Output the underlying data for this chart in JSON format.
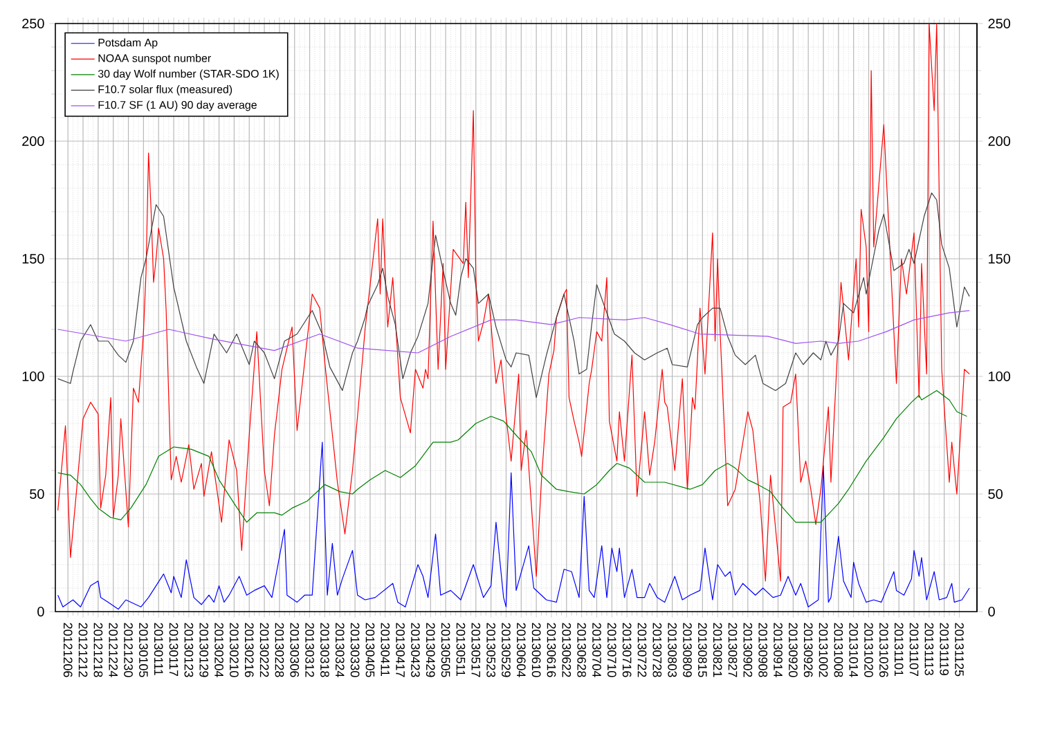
{
  "chart_data": {
    "type": "line",
    "grid": true,
    "legend": "top left",
    "xlim": [
      "2012-12-01",
      "2013-12-02"
    ],
    "xticks": [
      {
        "value": "2012-12-06",
        "label": "20121206"
      },
      {
        "value": "2012-12-12",
        "label": "20121212"
      },
      {
        "value": "2012-12-18",
        "label": "20121218"
      },
      {
        "value": "2012-12-24",
        "label": "20121224"
      },
      {
        "value": "2012-12-30",
        "label": "20121230"
      },
      {
        "value": "2013-01-05",
        "label": "20130105"
      },
      {
        "value": "2013-01-11",
        "label": "20130111"
      },
      {
        "value": "2013-01-17",
        "label": "20130117"
      },
      {
        "value": "2013-01-23",
        "label": "20130123"
      },
      {
        "value": "2013-01-29",
        "label": "20130129"
      },
      {
        "value": "2013-02-04",
        "label": "20130204"
      },
      {
        "value": "2013-02-10",
        "label": "20130210"
      },
      {
        "value": "2013-02-16",
        "label": "20130216"
      },
      {
        "value": "2013-02-22",
        "label": "20130222"
      },
      {
        "value": "2013-02-28",
        "label": "20130228"
      },
      {
        "value": "2013-03-06",
        "label": "20130306"
      },
      {
        "value": "2013-03-12",
        "label": "20130312"
      },
      {
        "value": "2013-03-18",
        "label": "20130318"
      },
      {
        "value": "2013-03-24",
        "label": "20130324"
      },
      {
        "value": "2013-03-30",
        "label": "20130330"
      },
      {
        "value": "2013-04-05",
        "label": "20130405"
      },
      {
        "value": "2013-04-11",
        "label": "20130411"
      },
      {
        "value": "2013-04-17",
        "label": "20130417"
      },
      {
        "value": "2013-04-23",
        "label": "20130423"
      },
      {
        "value": "2013-04-29",
        "label": "20130429"
      },
      {
        "value": "2013-05-05",
        "label": "20130505"
      },
      {
        "value": "2013-05-11",
        "label": "20130511"
      },
      {
        "value": "2013-05-17",
        "label": "20130517"
      },
      {
        "value": "2013-05-23",
        "label": "20130523"
      },
      {
        "value": "2013-05-29",
        "label": "20130529"
      },
      {
        "value": "2013-06-04",
        "label": "20130604"
      },
      {
        "value": "2013-06-10",
        "label": "20130610"
      },
      {
        "value": "2013-06-16",
        "label": "20130616"
      },
      {
        "value": "2013-06-22",
        "label": "20130622"
      },
      {
        "value": "2013-06-28",
        "label": "20130628"
      },
      {
        "value": "2013-07-04",
        "label": "20130704"
      },
      {
        "value": "2013-07-10",
        "label": "20130710"
      },
      {
        "value": "2013-07-16",
        "label": "20130716"
      },
      {
        "value": "2013-07-22",
        "label": "20130722"
      },
      {
        "value": "2013-07-28",
        "label": "20130728"
      },
      {
        "value": "2013-08-03",
        "label": "20130803"
      },
      {
        "value": "2013-08-09",
        "label": "20130809"
      },
      {
        "value": "2013-08-15",
        "label": "20130815"
      },
      {
        "value": "2013-08-21",
        "label": "20130821"
      },
      {
        "value": "2013-08-27",
        "label": "20130827"
      },
      {
        "value": "2013-09-02",
        "label": "20130902"
      },
      {
        "value": "2013-09-08",
        "label": "20130908"
      },
      {
        "value": "2013-09-14",
        "label": "20130914"
      },
      {
        "value": "2013-09-20",
        "label": "20130920"
      },
      {
        "value": "2013-09-26",
        "label": "20130926"
      },
      {
        "value": "2013-10-02",
        "label": "20131002"
      },
      {
        "value": "2013-10-08",
        "label": "20131008"
      },
      {
        "value": "2013-10-14",
        "label": "20131014"
      },
      {
        "value": "2013-10-20",
        "label": "20131020"
      },
      {
        "value": "2013-10-26",
        "label": "20131026"
      },
      {
        "value": "2013-11-01",
        "label": "20131101"
      },
      {
        "value": "2013-11-07",
        "label": "20131107"
      },
      {
        "value": "2013-11-13",
        "label": "20131113"
      },
      {
        "value": "2013-11-19",
        "label": "20131119"
      },
      {
        "value": "2013-11-25",
        "label": "20131125"
      }
    ],
    "ylim": [
      0,
      250
    ],
    "yticks": [
      0,
      50,
      100,
      150,
      200,
      250
    ],
    "y2lim": [
      0,
      250
    ],
    "y2ticks": [
      0,
      50,
      100,
      150,
      200,
      250
    ],
    "series": [
      {
        "name": "Potsdam Ap",
        "color": "#0000ff",
        "x": [
          "2012-12-02",
          "2012-12-04",
          "2012-12-08",
          "2012-12-11",
          "2012-12-15",
          "2012-12-18",
          "2012-12-19",
          "2012-12-22",
          "2012-12-26",
          "2012-12-29",
          "2013-01-04",
          "2013-01-07",
          "2013-01-13",
          "2013-01-16",
          "2013-01-17",
          "2013-01-20",
          "2013-01-22",
          "2013-01-25",
          "2013-01-28",
          "2013-01-31",
          "2013-02-02",
          "2013-02-04",
          "2013-02-06",
          "2013-02-08",
          "2013-02-12",
          "2013-02-15",
          "2013-02-18",
          "2013-02-22",
          "2013-02-25",
          "2013-03-02",
          "2013-03-03",
          "2013-03-07",
          "2013-03-10",
          "2013-03-13",
          "2013-03-17",
          "2013-03-19",
          "2013-03-21",
          "2013-03-23",
          "2013-03-25",
          "2013-03-29",
          "2013-03-31",
          "2013-04-03",
          "2013-04-07",
          "2013-04-14",
          "2013-04-16",
          "2013-04-19",
          "2013-04-24",
          "2013-04-26",
          "2013-04-28",
          "2013-05-01",
          "2013-05-03",
          "2013-05-07",
          "2013-05-11",
          "2013-05-16",
          "2013-05-18",
          "2013-05-20",
          "2013-05-23",
          "2013-05-25",
          "2013-05-28",
          "2013-05-29",
          "2013-05-31",
          "2013-06-02",
          "2013-06-07",
          "2013-06-09",
          "2013-06-14",
          "2013-06-18",
          "2013-06-21",
          "2013-06-24",
          "2013-06-27",
          "2013-06-29",
          "2013-07-01",
          "2013-07-03",
          "2013-07-06",
          "2013-07-08",
          "2013-07-10",
          "2013-07-12",
          "2013-07-13",
          "2013-07-15",
          "2013-07-18",
          "2013-07-20",
          "2013-07-23",
          "2013-07-25",
          "2013-07-28",
          "2013-07-31",
          "2013-08-04",
          "2013-08-07",
          "2013-08-10",
          "2013-08-14",
          "2013-08-16",
          "2013-08-19",
          "2013-08-21",
          "2013-08-24",
          "2013-08-26",
          "2013-08-28",
          "2013-08-31",
          "2013-09-05",
          "2013-09-08",
          "2013-09-12",
          "2013-09-15",
          "2013-09-18",
          "2013-09-21",
          "2013-09-23",
          "2013-09-26",
          "2013-09-30",
          "2013-10-02",
          "2013-10-04",
          "2013-10-05",
          "2013-10-08",
          "2013-10-10",
          "2013-10-13",
          "2013-10-14",
          "2013-10-16",
          "2013-10-19",
          "2013-10-22",
          "2013-10-25",
          "2013-10-30",
          "2013-10-31",
          "2013-11-03",
          "2013-11-06",
          "2013-11-07",
          "2013-11-09",
          "2013-11-10",
          "2013-11-12",
          "2013-11-15",
          "2013-11-17",
          "2013-11-20",
          "2013-11-22",
          "2013-11-23",
          "2013-11-26",
          "2013-11-29"
        ],
        "values": [
          7,
          2,
          5,
          2,
          11,
          13,
          6,
          4,
          1,
          5,
          2,
          6,
          16,
          8,
          15,
          6,
          22,
          6,
          3,
          7,
          4,
          11,
          4,
          7,
          15,
          7,
          9,
          11,
          6,
          35,
          7,
          4,
          7,
          7,
          72,
          7,
          29,
          7,
          14,
          26,
          7,
          5,
          6,
          12,
          4,
          2,
          20,
          15,
          6,
          33,
          7,
          9,
          5,
          20,
          13,
          6,
          11,
          38,
          6,
          2,
          59,
          9,
          28,
          10,
          5,
          4,
          18,
          17,
          6,
          49,
          9,
          6,
          28,
          6,
          27,
          17,
          27,
          6,
          18,
          6,
          6,
          12,
          6,
          4,
          15,
          5,
          7,
          9,
          27,
          5,
          20,
          15,
          17,
          7,
          12,
          7,
          10,
          6,
          7,
          15,
          7,
          12,
          2,
          5,
          62,
          4,
          6,
          32,
          13,
          6,
          21,
          12,
          4,
          5,
          4,
          17,
          9,
          7,
          14,
          26,
          15,
          23,
          5,
          17,
          5,
          6,
          12,
          4,
          5,
          10
        ]
      },
      {
        "name": "NOAA sunspot number",
        "color": "#ff0000",
        "x": [
          "2012-12-02",
          "2012-12-05",
          "2012-12-07",
          "2012-12-12",
          "2012-12-15",
          "2012-12-18",
          "2012-12-19",
          "2012-12-21",
          "2012-12-23",
          "2012-12-24",
          "2012-12-26",
          "2012-12-27",
          "2012-12-30",
          "2012-12-31",
          "2013-01-01",
          "2013-01-03",
          "2013-01-05",
          "2013-01-06",
          "2013-01-07",
          "2013-01-08",
          "2013-01-09",
          "2013-01-10",
          "2013-01-11",
          "2013-01-13",
          "2013-01-14",
          "2013-01-16",
          "2013-01-18",
          "2013-01-20",
          "2013-01-23",
          "2013-01-25",
          "2013-01-28",
          "2013-01-29",
          "2013-02-01",
          "2013-02-05",
          "2013-02-08",
          "2013-02-11",
          "2013-02-13",
          "2013-02-16",
          "2013-02-19",
          "2013-02-22",
          "2013-02-24",
          "2013-02-26",
          "2013-03-01",
          "2013-03-05",
          "2013-03-07",
          "2013-03-13",
          "2013-03-16",
          "2013-03-18",
          "2013-03-23",
          "2013-03-26",
          "2013-03-29",
          "2013-03-31",
          "2013-04-03",
          "2013-04-08",
          "2013-04-09",
          "2013-04-10",
          "2013-04-12",
          "2013-04-14",
          "2013-04-17",
          "2013-04-21",
          "2013-04-23",
          "2013-04-26",
          "2013-04-27",
          "2013-04-28",
          "2013-04-30",
          "2013-05-02",
          "2013-05-04",
          "2013-05-05",
          "2013-05-08",
          "2013-05-12",
          "2013-05-13",
          "2013-05-14",
          "2013-05-16",
          "2013-05-17",
          "2013-05-18",
          "2013-05-20",
          "2013-05-22",
          "2013-05-25",
          "2013-05-27",
          "2013-05-29",
          "2013-05-31",
          "2013-06-03",
          "2013-06-04",
          "2013-06-06",
          "2013-06-10",
          "2013-06-12",
          "2013-06-15",
          "2013-06-17",
          "2013-06-18",
          "2013-06-21",
          "2013-06-22",
          "2013-06-23",
          "2013-06-25",
          "2013-06-27",
          "2013-06-28",
          "2013-07-01",
          "2013-07-02",
          "2013-07-04",
          "2013-07-06",
          "2013-07-08",
          "2013-07-09",
          "2013-07-12",
          "2013-07-13",
          "2013-07-15",
          "2013-07-18",
          "2013-07-20",
          "2013-07-23",
          "2013-07-25",
          "2013-07-27",
          "2013-07-30",
          "2013-07-31",
          "2013-08-01",
          "2013-08-04",
          "2013-08-07",
          "2013-08-09",
          "2013-08-11",
          "2013-08-12",
          "2013-08-14",
          "2013-08-16",
          "2013-08-19",
          "2013-08-20",
          "2013-08-21",
          "2013-08-22",
          "2013-08-25",
          "2013-08-28",
          "2013-09-02",
          "2013-09-04",
          "2013-09-07",
          "2013-09-09",
          "2013-09-11",
          "2013-09-15",
          "2013-09-16",
          "2013-09-19",
          "2013-09-21",
          "2013-09-23",
          "2013-09-25",
          "2013-09-27",
          "2013-09-29",
          "2013-10-01",
          "2013-10-04",
          "2013-10-05",
          "2013-10-09",
          "2013-10-12",
          "2013-10-15",
          "2013-10-16",
          "2013-10-17",
          "2013-10-19",
          "2013-10-20",
          "2013-10-21",
          "2013-10-22",
          "2013-10-26",
          "2013-10-31",
          "2013-11-02",
          "2013-11-04",
          "2013-11-07",
          "2013-11-09",
          "2013-11-10",
          "2013-11-12",
          "2013-11-13",
          "2013-11-15",
          "2013-11-16",
          "2013-11-18",
          "2013-11-21",
          "2013-11-22",
          "2013-11-24",
          "2013-11-27",
          "2013-11-29"
        ],
        "values": [
          43,
          79,
          23,
          82,
          89,
          84,
          44,
          58,
          91,
          40,
          58,
          82,
          36,
          66,
          95,
          89,
          119,
          144,
          195,
          171,
          140,
          150,
          163,
          150,
          128,
          56,
          66,
          55,
          71,
          52,
          63,
          49,
          68,
          38,
          73,
          60,
          26,
          75,
          119,
          60,
          45,
          75,
          103,
          121,
          77,
          135,
          129,
          106,
          55,
          33,
          60,
          83,
          120,
          167,
          135,
          167,
          121,
          142,
          91,
          76,
          103,
          95,
          103,
          99,
          166,
          103,
          148,
          103,
          154,
          148,
          174,
          142,
          213,
          142,
          115,
          123,
          135,
          97,
          107,
          83,
          64,
          101,
          60,
          77,
          15,
          55,
          101,
          111,
          125,
          135,
          137,
          91,
          81,
          72,
          66,
          97,
          103,
          119,
          115,
          142,
          81,
          64,
          85,
          64,
          109,
          49,
          85,
          58,
          72,
          103,
          89,
          87,
          60,
          99,
          52,
          91,
          86,
          129,
          101,
          161,
          115,
          150,
          119,
          45,
          52,
          85,
          77,
          45,
          13,
          58,
          13,
          87,
          89,
          101,
          55,
          64,
          52,
          37,
          52,
          87,
          55,
          140,
          107,
          150,
          121,
          171,
          155,
          119,
          230,
          155,
          207,
          97,
          150,
          135,
          161,
          91,
          148,
          101,
          250,
          213,
          250,
          103,
          55,
          72,
          50,
          103,
          101
        ]
      },
      {
        "name": "30 day Wolf number (STAR-SDO 1K)",
        "color": "#008000",
        "x": [
          "2012-12-02",
          "2012-12-07",
          "2012-12-11",
          "2012-12-15",
          "2012-12-18",
          "2012-12-23",
          "2012-12-27",
          "2012-12-31",
          "2013-01-06",
          "2013-01-11",
          "2013-01-17",
          "2013-01-24",
          "2013-01-31",
          "2013-02-04",
          "2013-02-10",
          "2013-02-15",
          "2013-02-19",
          "2013-02-26",
          "2013-03-01",
          "2013-03-05",
          "2013-03-11",
          "2013-03-16",
          "2013-03-18",
          "2013-03-24",
          "2013-03-29",
          "2013-03-31",
          "2013-04-05",
          "2013-04-11",
          "2013-04-17",
          "2013-04-23",
          "2013-04-30",
          "2013-05-07",
          "2013-05-10",
          "2013-05-17",
          "2013-05-23",
          "2013-05-28",
          "2013-06-02",
          "2013-06-08",
          "2013-06-12",
          "2013-06-18",
          "2013-06-23",
          "2013-06-29",
          "2013-07-04",
          "2013-07-09",
          "2013-07-12",
          "2013-07-17",
          "2013-07-23",
          "2013-07-31",
          "2013-08-10",
          "2013-08-15",
          "2013-08-20",
          "2013-08-25",
          "2013-08-28",
          "2013-09-02",
          "2013-09-06",
          "2013-09-11",
          "2013-09-16",
          "2013-09-21",
          "2013-09-24",
          "2013-10-01",
          "2013-10-08",
          "2013-10-12",
          "2013-10-19",
          "2013-10-26",
          "2013-10-31",
          "2013-11-06",
          "2013-11-09",
          "2013-11-10",
          "2013-11-16",
          "2013-11-21",
          "2013-11-24",
          "2013-11-28"
        ],
        "values": [
          59,
          58,
          54,
          48,
          44,
          40,
          39,
          44,
          54,
          66,
          70,
          69,
          66,
          56,
          46,
          38,
          42,
          42,
          41,
          44,
          47,
          52,
          54,
          51,
          50,
          52,
          56,
          60,
          57,
          62,
          72,
          72,
          73,
          80,
          83,
          81,
          75,
          68,
          58,
          52,
          51,
          50,
          54,
          60,
          63,
          61,
          55,
          55,
          52,
          54,
          60,
          63,
          61,
          56,
          54,
          51,
          44,
          38,
          38,
          38,
          46,
          52,
          64,
          74,
          82,
          89,
          92,
          90,
          94,
          90,
          85,
          83
        ]
      },
      {
        "name": "F10.7 solar flux (measured)",
        "color": "#404040",
        "x": [
          "2012-12-02",
          "2012-12-07",
          "2012-12-08",
          "2012-12-11",
          "2012-12-15",
          "2012-12-18",
          "2012-12-22",
          "2012-12-26",
          "2012-12-29",
          "2013-01-01",
          "2013-01-04",
          "2013-01-06",
          "2013-01-10",
          "2013-01-13",
          "2013-01-17",
          "2013-01-22",
          "2013-01-26",
          "2013-01-29",
          "2013-02-02",
          "2013-02-07",
          "2013-02-11",
          "2013-02-16",
          "2013-02-18",
          "2013-02-22",
          "2013-02-26",
          "2013-03-02",
          "2013-03-07",
          "2013-03-13",
          "2013-03-17",
          "2013-03-20",
          "2013-03-25",
          "2013-03-29",
          "2013-03-31",
          "2013-04-03",
          "2013-04-04",
          "2013-04-08",
          "2013-04-10",
          "2013-04-12",
          "2013-04-15",
          "2013-04-18",
          "2013-04-21",
          "2013-04-24",
          "2013-04-28",
          "2013-05-01",
          "2013-05-04",
          "2013-05-07",
          "2013-05-09",
          "2013-05-11",
          "2013-05-13",
          "2013-05-16",
          "2013-05-18",
          "2013-05-22",
          "2013-05-25",
          "2013-05-29",
          "2013-05-31",
          "2013-06-02",
          "2013-06-07",
          "2013-06-10",
          "2013-06-14",
          "2013-06-18",
          "2013-06-21",
          "2013-06-25",
          "2013-06-27",
          "2013-06-30",
          "2013-07-02",
          "2013-07-04",
          "2013-07-08",
          "2013-07-11",
          "2013-07-15",
          "2013-07-19",
          "2013-07-23",
          "2013-07-28",
          "2013-08-01",
          "2013-08-03",
          "2013-08-09",
          "2013-08-13",
          "2013-08-15",
          "2013-08-19",
          "2013-08-22",
          "2013-08-25",
          "2013-08-28",
          "2013-09-01",
          "2013-09-05",
          "2013-09-08",
          "2013-09-13",
          "2013-09-17",
          "2013-09-21",
          "2013-09-24",
          "2013-09-28",
          "2013-10-01",
          "2013-10-03",
          "2013-10-05",
          "2013-10-08",
          "2013-10-10",
          "2013-10-14",
          "2013-10-18",
          "2013-10-19",
          "2013-10-24",
          "2013-10-26",
          "2013-10-30",
          "2013-11-03",
          "2013-11-05",
          "2013-11-07",
          "2013-11-11",
          "2013-11-14",
          "2013-11-16",
          "2013-11-18",
          "2013-11-21",
          "2013-11-24",
          "2013-11-27",
          "2013-11-29"
        ],
        "values": [
          99,
          97,
          102,
          115,
          122,
          115,
          115,
          109,
          106,
          115,
          142,
          150,
          173,
          168,
          138,
          115,
          104,
          97,
          118,
          110,
          118,
          105,
          115,
          110,
          99,
          115,
          118,
          128,
          118,
          104,
          94,
          110,
          115,
          125,
          130,
          139,
          146,
          134,
          122,
          99,
          110,
          117,
          131,
          160,
          145,
          131,
          126,
          142,
          150,
          146,
          131,
          135,
          121,
          107,
          104,
          110,
          109,
          91,
          109,
          125,
          135,
          115,
          101,
          103,
          122,
          139,
          127,
          118,
          115,
          110,
          107,
          110,
          112,
          105,
          104,
          122,
          125,
          129,
          129,
          117,
          109,
          105,
          109,
          97,
          94,
          97,
          110,
          105,
          110,
          107,
          115,
          109,
          115,
          131,
          127,
          142,
          135,
          162,
          169,
          145,
          148,
          154,
          148,
          168,
          178,
          175,
          156,
          146,
          121,
          138,
          134
        ]
      },
      {
        "name": "F10.7 SF (1 AU) 90 day average",
        "color": "#a050f0",
        "x": [
          "2012-12-02",
          "2012-12-29",
          "2013-01-15",
          "2013-02-01",
          "2013-02-26",
          "2013-03-16",
          "2013-03-31",
          "2013-04-24",
          "2013-05-07",
          "2013-05-23",
          "2013-06-02",
          "2013-06-16",
          "2013-06-27",
          "2013-07-15",
          "2013-07-23",
          "2013-08-02",
          "2013-08-14",
          "2013-09-10",
          "2013-09-21",
          "2013-10-01",
          "2013-10-08",
          "2013-10-16",
          "2013-10-27",
          "2013-11-07",
          "2013-11-21",
          "2013-11-29"
        ],
        "values": [
          120,
          115,
          120,
          116,
          111,
          118,
          112,
          110,
          117,
          124,
          124,
          122,
          125,
          124,
          125,
          122,
          118,
          117,
          114,
          115,
          114,
          115,
          119,
          124,
          127,
          128
        ]
      }
    ]
  }
}
